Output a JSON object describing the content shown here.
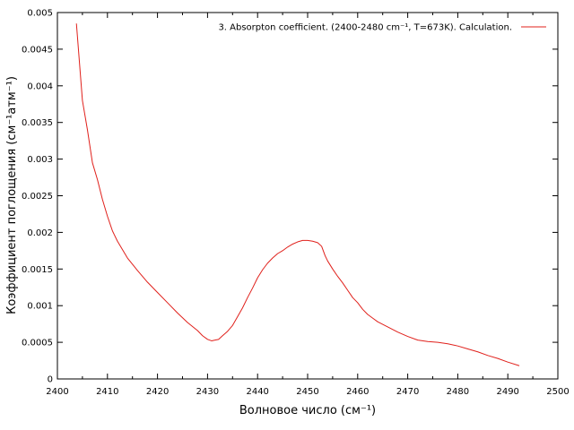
{
  "chart_data": {
    "type": "line",
    "title": "",
    "xlabel": "Волновое число (см⁻¹)",
    "ylabel": "Коэффициент поглощения (см⁻¹атм⁻¹)",
    "xlim": [
      2400,
      2500
    ],
    "ylim": [
      0,
      0.005
    ],
    "xticks": [
      "2400",
      "2410",
      "2420",
      "2430",
      "2440",
      "2450",
      "2460",
      "2470",
      "2480",
      "2490",
      "2500"
    ],
    "yticks": [
      "0",
      "0.0005",
      "0.001",
      "0.0015",
      "0.002",
      "0.0025",
      "0.003",
      "0.0035",
      "0.004",
      "0.0045",
      "0.005"
    ],
    "grid": false,
    "legend_position": "top-right",
    "series": [
      {
        "name": "3. Absorpton coefficient. (2400-2480 cm⁻¹, T=673K). Calculation.",
        "color": "#e0201b",
        "x": [
          2403.8,
          2405,
          2406,
          2407,
          2408,
          2409,
          2410,
          2411,
          2412,
          2414,
          2416,
          2418,
          2420,
          2422,
          2424,
          2426,
          2428,
          2429,
          2430,
          2430.8,
          2431.5,
          2432.2,
          2433,
          2434,
          2435,
          2436,
          2437,
          2438,
          2439,
          2440,
          2441,
          2442,
          2443,
          2444,
          2445,
          2446,
          2447,
          2448,
          2449,
          2450,
          2451,
          2452,
          2452.8,
          2453.5,
          2454,
          2455,
          2456,
          2457,
          2458,
          2459,
          2460,
          2461,
          2462,
          2463,
          2464,
          2466,
          2468,
          2470,
          2472,
          2474,
          2476,
          2478,
          2480,
          2482,
          2484,
          2486,
          2488,
          2490,
          2492.3
        ],
        "y": [
          0.00485,
          0.0038,
          0.0034,
          0.00295,
          0.00272,
          0.00245,
          0.00222,
          0.00202,
          0.00188,
          0.00165,
          0.00148,
          0.00132,
          0.00118,
          0.00104,
          0.0009,
          0.00077,
          0.00066,
          0.00059,
          0.00054,
          0.00052,
          0.00053,
          0.00054,
          0.00059,
          0.00065,
          0.00073,
          0.00085,
          0.00097,
          0.00111,
          0.00124,
          0.00138,
          0.00149,
          0.00158,
          0.00165,
          0.00171,
          0.00175,
          0.0018,
          0.00184,
          0.00187,
          0.00189,
          0.00189,
          0.00188,
          0.00186,
          0.00181,
          0.00168,
          0.00161,
          0.0015,
          0.0014,
          0.00131,
          0.00121,
          0.00111,
          0.00104,
          0.00095,
          0.00088,
          0.00083,
          0.00078,
          0.00071,
          0.00064,
          0.00058,
          0.00053,
          0.00051,
          0.0005,
          0.00048,
          0.00045,
          0.00041,
          0.00037,
          0.00032,
          0.00028,
          0.00023,
          0.00018
        ]
      }
    ]
  }
}
